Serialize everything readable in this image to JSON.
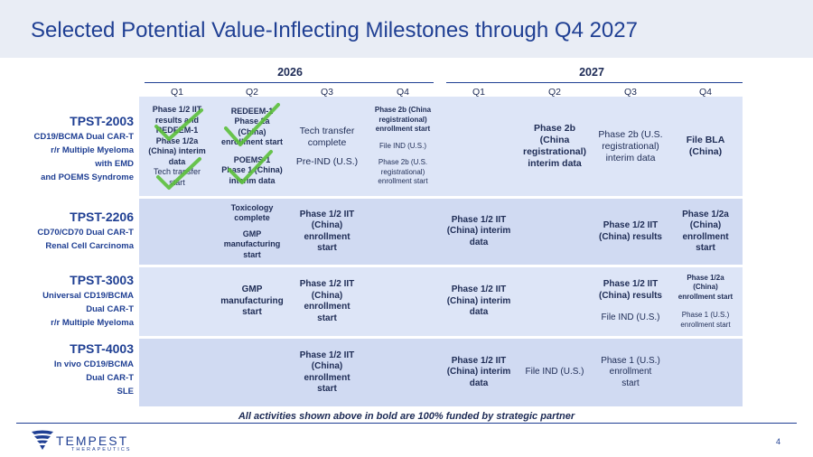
{
  "title": "Selected Potential Value-Inflecting Milestones through Q4 2027",
  "years": [
    "2026",
    "2027"
  ],
  "quarters": [
    "Q1",
    "Q2",
    "Q3",
    "Q4",
    "Q1",
    "Q2",
    "Q3",
    "Q4"
  ],
  "programs": [
    {
      "name": "TPST-2003",
      "desc": [
        "CD19/BCMA Dual CAR-T",
        "r/r Multiple Myeloma",
        "with EMD",
        "and POEMS Syndrome"
      ]
    },
    {
      "name": "TPST-2206",
      "desc": [
        "CD70/CD70 Dual CAR-T",
        "Renal Cell Carcinoma"
      ]
    },
    {
      "name": "TPST-3003",
      "desc": [
        "Universal CD19/BCMA",
        "Dual CAR-T",
        "r/r Multiple Myeloma"
      ]
    },
    {
      "name": "TPST-4003",
      "desc": [
        "In vivo CD19/BCMA",
        "Dual CAR-T",
        "SLE"
      ]
    }
  ],
  "cells": {
    "r0c0": [
      "Phase 1/2 IIT",
      "results and",
      "REDEEM-1",
      "Phase 1/2a",
      "(China) interim",
      "data"
    ],
    "r0c0b": [
      "Tech transfer",
      "start"
    ],
    "r0c1": [
      "REDEEM-1",
      "Phase 2a",
      "(China)",
      "enrollment start"
    ],
    "r0c1b": [
      "POEMS-1",
      "Phase 1 (China)",
      "interim data"
    ],
    "r0c2a": [
      "Tech transfer",
      "complete"
    ],
    "r0c2b": [
      "Pre-IND (U.S.)"
    ],
    "r0c3a": [
      "Phase 2b (China",
      "registrational)",
      "enrollment start"
    ],
    "r0c3b": [
      "File IND (U.S.)"
    ],
    "r0c3c": [
      "Phase 2b (U.S.",
      "registrational)",
      "enrollment start"
    ],
    "r0c5": [
      "Phase 2b",
      "(China",
      "registrational)",
      "interim data"
    ],
    "r0c6": [
      "Phase 2b (U.S.",
      "registrational)",
      "interim data"
    ],
    "r0c7": [
      "File BLA",
      "(China)"
    ],
    "r1c1a": [
      "Toxicology",
      "complete"
    ],
    "r1c1b": [
      "GMP",
      "manufacturing",
      "start"
    ],
    "r1c2": [
      "Phase 1/2 IIT",
      "(China)",
      "enrollment",
      "start"
    ],
    "r1c4": [
      "Phase 1/2 IIT",
      "(China) interim",
      "data"
    ],
    "r1c6": [
      "Phase 1/2 IIT",
      "(China) results"
    ],
    "r1c7": [
      "Phase 1/2a",
      "(China)",
      "enrollment",
      "start"
    ],
    "r2c1": [
      "GMP",
      "manufacturing",
      "start"
    ],
    "r2c2": [
      "Phase 1/2 IIT",
      "(China)",
      "enrollment",
      "start"
    ],
    "r2c4": [
      "Phase 1/2 IIT",
      "(China) interim",
      "data"
    ],
    "r2c6a": [
      "Phase 1/2 IIT",
      "(China) results"
    ],
    "r2c6b": [
      "File IND (U.S.)"
    ],
    "r2c7a": [
      "Phase 1/2a",
      "(China)",
      "enrollment start"
    ],
    "r2c7b": [
      "Phase 1 (U.S.)",
      "enrollment start"
    ],
    "r3c2": [
      "Phase 1/2 IIT",
      "(China)",
      "enrollment",
      "start"
    ],
    "r3c4": [
      "Phase 1/2 IIT",
      "(China) interim",
      "data"
    ],
    "r3c5": [
      "File IND (U.S.)"
    ],
    "r3c6": [
      "Phase 1 (U.S.)",
      "enrollment",
      "start"
    ]
  },
  "footnote": "All activities shown above in bold are 100% funded by strategic partner",
  "logo": {
    "name": "TEMPEST",
    "sub": "THERAPEUTICS"
  },
  "page_number": "4",
  "colors": {
    "title": "#1f3f93",
    "cell_light": "#dde5f7",
    "cell_alt": "#d0daf2",
    "checkmark": "#5bbf3a"
  }
}
